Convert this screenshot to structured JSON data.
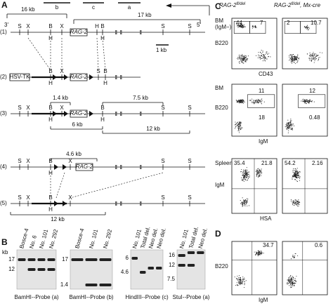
{
  "panel_a": {
    "label": "A",
    "probe_b": "b",
    "probe_c": "c",
    "probe_a": "a",
    "span_left": "16 kb",
    "span_right": "17 kb",
    "end_3": "3'",
    "end_5": "5'",
    "scale_bar": "1 kb",
    "rows": [
      "(1)",
      "(2)",
      "(3)",
      "(4)",
      "(5)"
    ],
    "site_s": "S",
    "site_x": "X",
    "site_b": "B",
    "site_h": "H",
    "gene": "RAG-2",
    "tk": "HSV-TK",
    "fragments": [
      "1.4 kb",
      "7.5 kb",
      "6 kb",
      "12 kb",
      "4.6 kb",
      "12 kb"
    ]
  },
  "panel_b": {
    "label": "B",
    "unit": "kb",
    "blots": [
      {
        "lanes": [
          "Bosce-4",
          "No. 6",
          "No. 101",
          "No. 292"
        ],
        "markers": [
          "17",
          "12"
        ],
        "caption": "BamHI--Probe (a)"
      },
      {
        "lanes": [
          "Bosce-4",
          "No. 101",
          "No. 292"
        ],
        "markers": [
          "17",
          "1.4"
        ],
        "caption": "BamHI--Probe (b)"
      },
      {
        "lanes": [
          "No. 101",
          "Total del.",
          "Neo del.",
          "Neo del."
        ],
        "markers": [
          "6",
          "4.6"
        ],
        "caption": "HindIII--Probe (c)"
      },
      {
        "lanes": [
          "No. 101",
          "Total del.",
          "Neo del."
        ],
        "markers": [
          "16",
          "12",
          "7.5"
        ],
        "caption": "StuI--Probe (a)"
      }
    ]
  },
  "panel_c": {
    "label": "C",
    "col_left": "RAG-2",
    "col_left_sup": "fl/del",
    "col_right": "RAG-2",
    "col_right_sup": "fl/del",
    "col_right_suffix": ", Mx-cre",
    "plots": [
      {
        "gate": [
          "BM",
          "(IgM−)"
        ],
        "y_axis": "B220",
        "x_axis": "CD43",
        "left": [
          "44",
          "7"
        ],
        "right": [
          "2",
          "10.7"
        ]
      },
      {
        "gate": [
          "BM"
        ],
        "y_axis": "B220",
        "x_axis": "IgM",
        "left": [
          "11",
          "18"
        ],
        "right": [
          "12",
          "0.48"
        ]
      },
      {
        "gate": [
          "Spleen"
        ],
        "y_axis": "IgM",
        "x_axis": "HSA",
        "left": [
          "35.4",
          "21.8"
        ],
        "right": [
          "54.2",
          "2.16"
        ]
      }
    ]
  },
  "panel_d": {
    "label": "D",
    "y_axis": "B220",
    "x_axis": "IgM",
    "left": "34.7",
    "right": "0.6"
  }
}
